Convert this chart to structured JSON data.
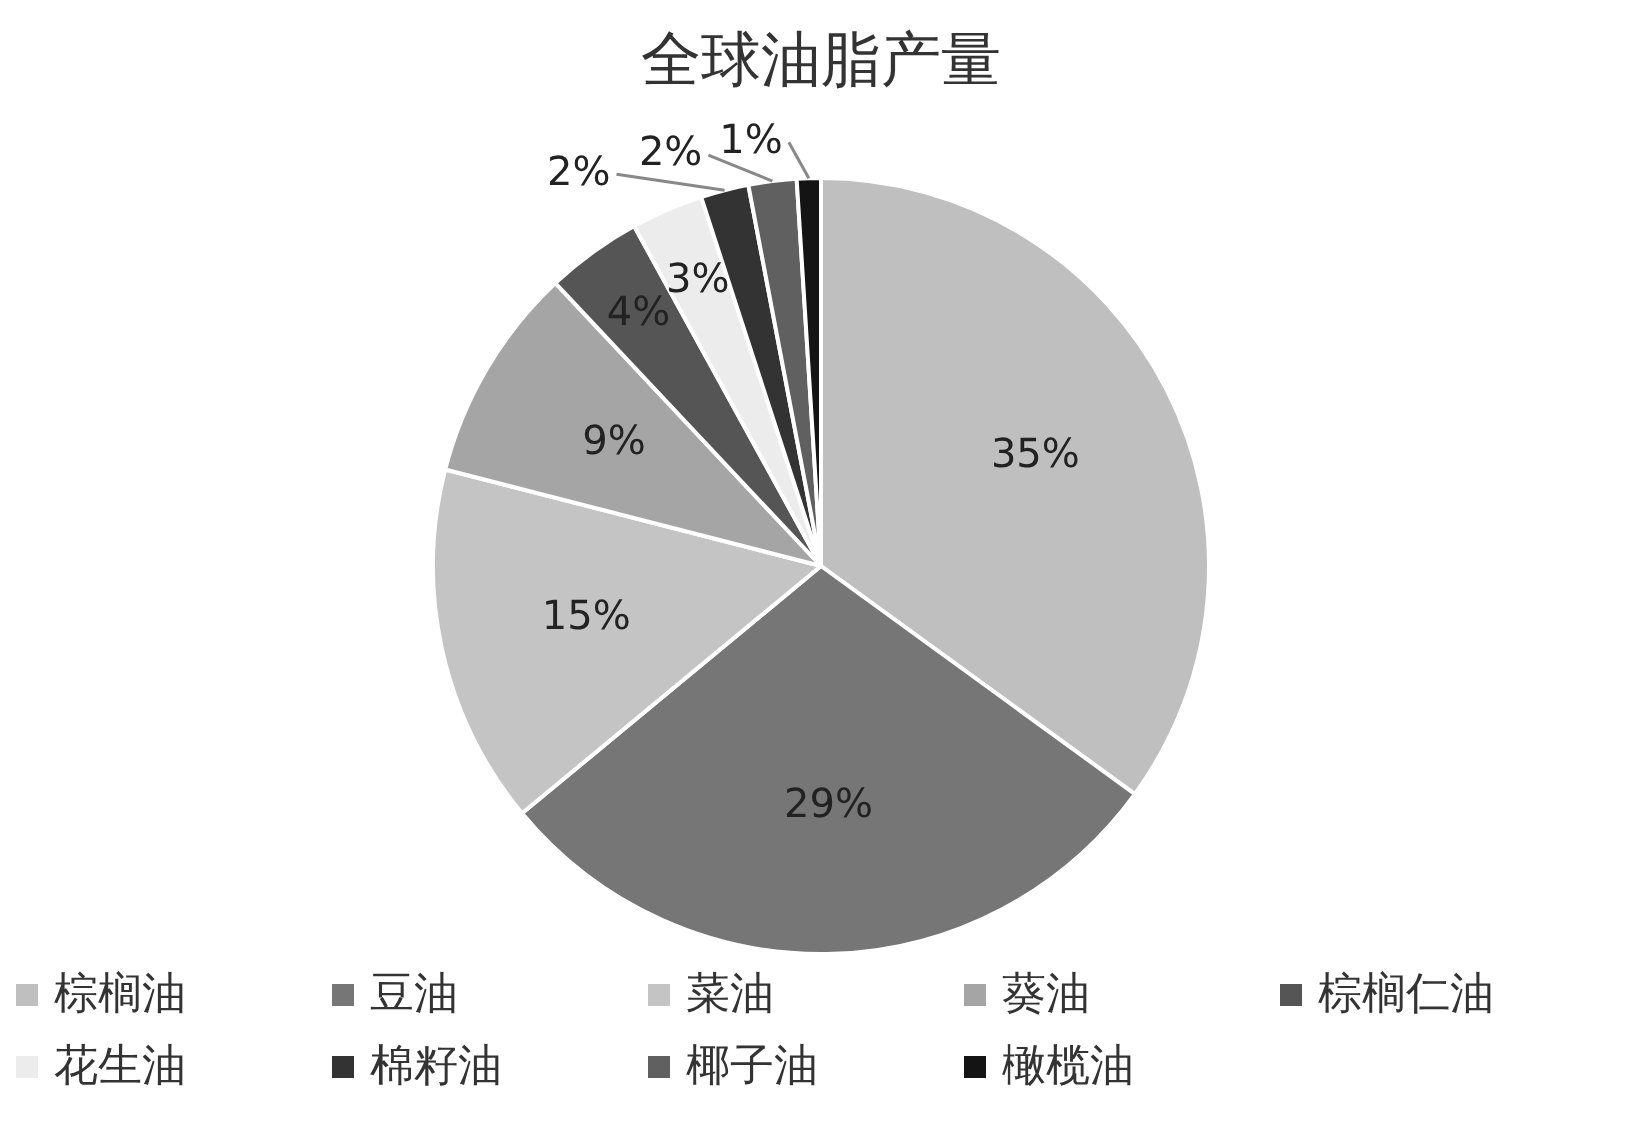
{
  "chart_data": {
    "type": "pie",
    "title": "全球油脂产量",
    "categories": [
      "棕榈油",
      "豆油",
      "菜油",
      "葵油",
      "棕榈仁油",
      "花生油",
      "棉籽油",
      "椰子油",
      "橄榄油"
    ],
    "values": [
      35,
      29,
      15,
      9,
      4,
      3,
      2,
      2,
      1
    ],
    "value_labels": [
      "35%",
      "29%",
      "15%",
      "9%",
      "4%",
      "3%",
      "2%",
      "2%",
      "1%"
    ],
    "colors": [
      "#bfbfbf",
      "#767676",
      "#c4c4c4",
      "#a5a5a5",
      "#555555",
      "#ececec",
      "#333333",
      "#606060",
      "#141414"
    ],
    "legend": "bottom"
  }
}
